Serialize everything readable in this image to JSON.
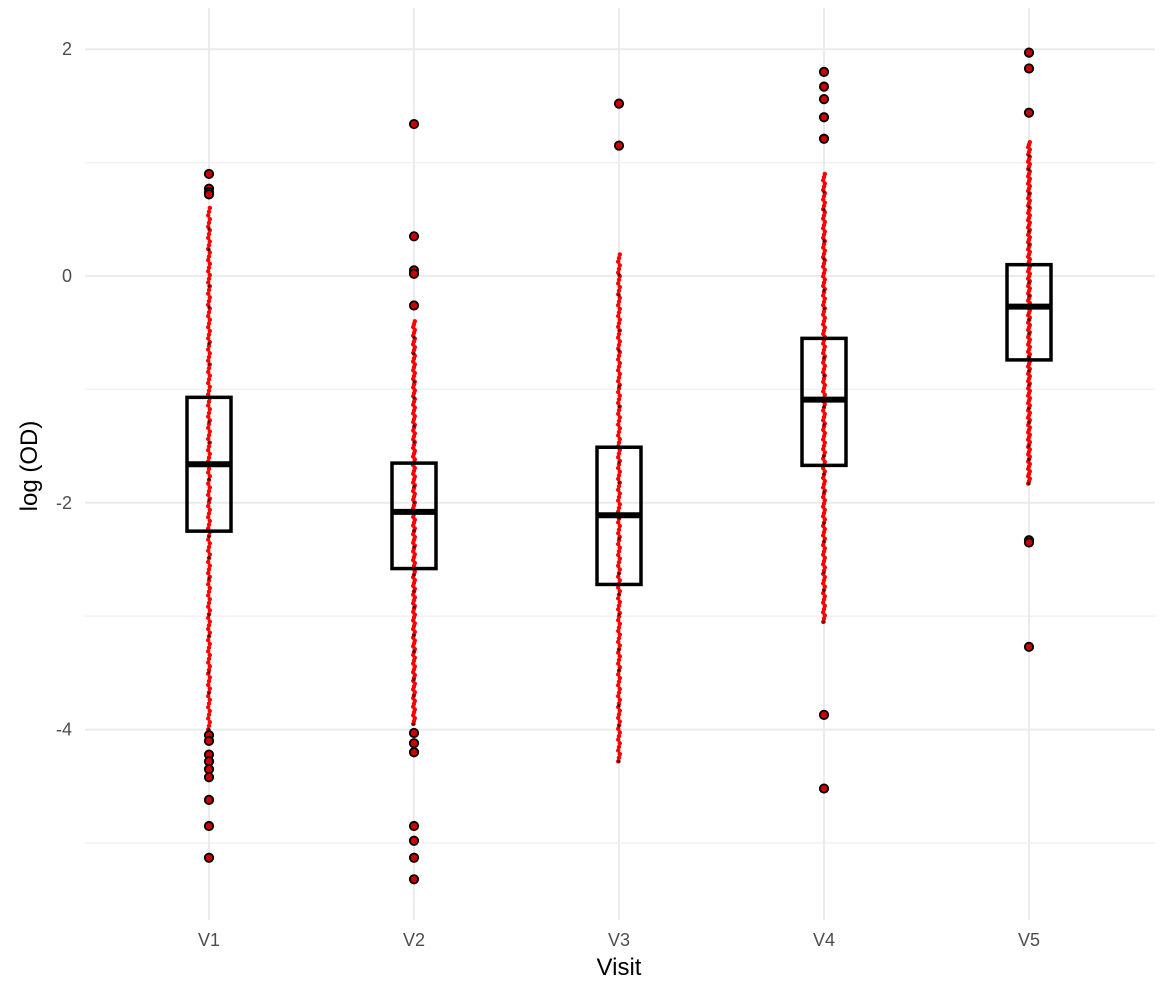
{
  "chart_data": {
    "type": "box",
    "xlabel": "Visit",
    "ylabel": "log (OD)",
    "categories": [
      "V1",
      "V2",
      "V3",
      "V4",
      "V5"
    ],
    "y_ticks": [
      2,
      0,
      -2,
      -4
    ],
    "y_tick_labels": [
      "2",
      "0",
      "-2",
      "-4"
    ],
    "ylim": [
      -5.7,
      2.35
    ],
    "grid": true,
    "legend": "none",
    "colors": {
      "background": "#ffffff",
      "grid_major": "#ebebeb",
      "grid_minor": "#f2f2f2",
      "box": "#000000",
      "jitter": "#ff0000",
      "outlier_fill": "#cc0000",
      "outlier_stroke": "#000000"
    },
    "boxes": [
      {
        "category": "V1",
        "q1": -2.25,
        "median": -1.66,
        "q3": -1.07,
        "whisker_low": -4.0,
        "whisker_high": 0.6,
        "points_range": [
          -4.0,
          0.6
        ],
        "outliers": [
          0.9,
          0.77,
          0.74,
          0.72,
          -4.05,
          -4.1,
          -4.22,
          -4.28,
          -4.35,
          -4.42,
          -4.62,
          -4.85,
          -5.13
        ]
      },
      {
        "category": "V2",
        "q1": -2.58,
        "median": -2.08,
        "q3": -1.65,
        "whisker_low": -3.95,
        "whisker_high": -0.4,
        "points_range": [
          -3.95,
          -0.4
        ],
        "outliers": [
          1.34,
          0.35,
          0.05,
          0.02,
          -0.26,
          -4.03,
          -4.12,
          -4.2,
          -4.85,
          -4.98,
          -5.13,
          -5.32
        ]
      },
      {
        "category": "V3",
        "q1": -2.72,
        "median": -2.11,
        "q3": -1.51,
        "whisker_low": -4.28,
        "whisker_high": 0.19,
        "points_range": [
          -4.28,
          0.19
        ],
        "outliers": [
          1.52,
          1.15
        ]
      },
      {
        "category": "V4",
        "q1": -1.67,
        "median": -1.09,
        "q3": -0.55,
        "whisker_low": -3.05,
        "whisker_high": 0.9,
        "points_range": [
          -3.05,
          0.9
        ],
        "outliers": [
          1.8,
          1.67,
          1.56,
          1.4,
          1.21,
          -3.87,
          -4.52
        ]
      },
      {
        "category": "V5",
        "q1": -0.74,
        "median": -0.27,
        "q3": 0.1,
        "whisker_low": -1.83,
        "whisker_high": 1.18,
        "points_range": [
          -1.83,
          1.18
        ],
        "outliers": [
          1.97,
          1.83,
          1.44,
          -2.33,
          -2.35,
          -3.27
        ]
      }
    ]
  }
}
